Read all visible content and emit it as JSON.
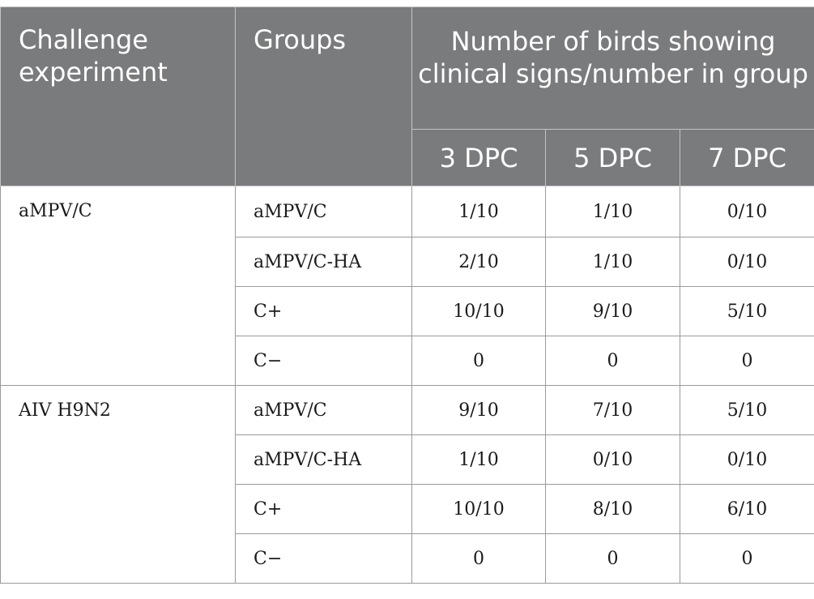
{
  "table": {
    "headers": {
      "challenge": "Challenge experiment",
      "groups": "Groups",
      "number": "Number of birds showing clinical signs/number in group",
      "days": [
        "3 DPC",
        "5 DPC",
        "7 DPC"
      ]
    },
    "sections": [
      {
        "experiment": "aMPV/C",
        "rows": [
          {
            "group": "aMPV/C",
            "values": [
              "1/10",
              "1/10",
              "0/10"
            ]
          },
          {
            "group": "aMPV/C-HA",
            "values": [
              "2/10",
              "1/10",
              "0/10"
            ]
          },
          {
            "group": "C+",
            "values": [
              "10/10",
              "9/10",
              "5/10"
            ]
          },
          {
            "group": "C−",
            "values": [
              "0",
              "0",
              "0"
            ]
          }
        ]
      },
      {
        "experiment": "AIV H9N2",
        "rows": [
          {
            "group": "aMPV/C",
            "values": [
              "9/10",
              "7/10",
              "5/10"
            ]
          },
          {
            "group": "aMPV/C-HA",
            "values": [
              "1/10",
              "0/10",
              "0/10"
            ]
          },
          {
            "group": "C+",
            "values": [
              "10/10",
              "8/10",
              "6/10"
            ]
          },
          {
            "group": "C−",
            "values": [
              "0",
              "0",
              "0"
            ]
          }
        ]
      }
    ]
  }
}
